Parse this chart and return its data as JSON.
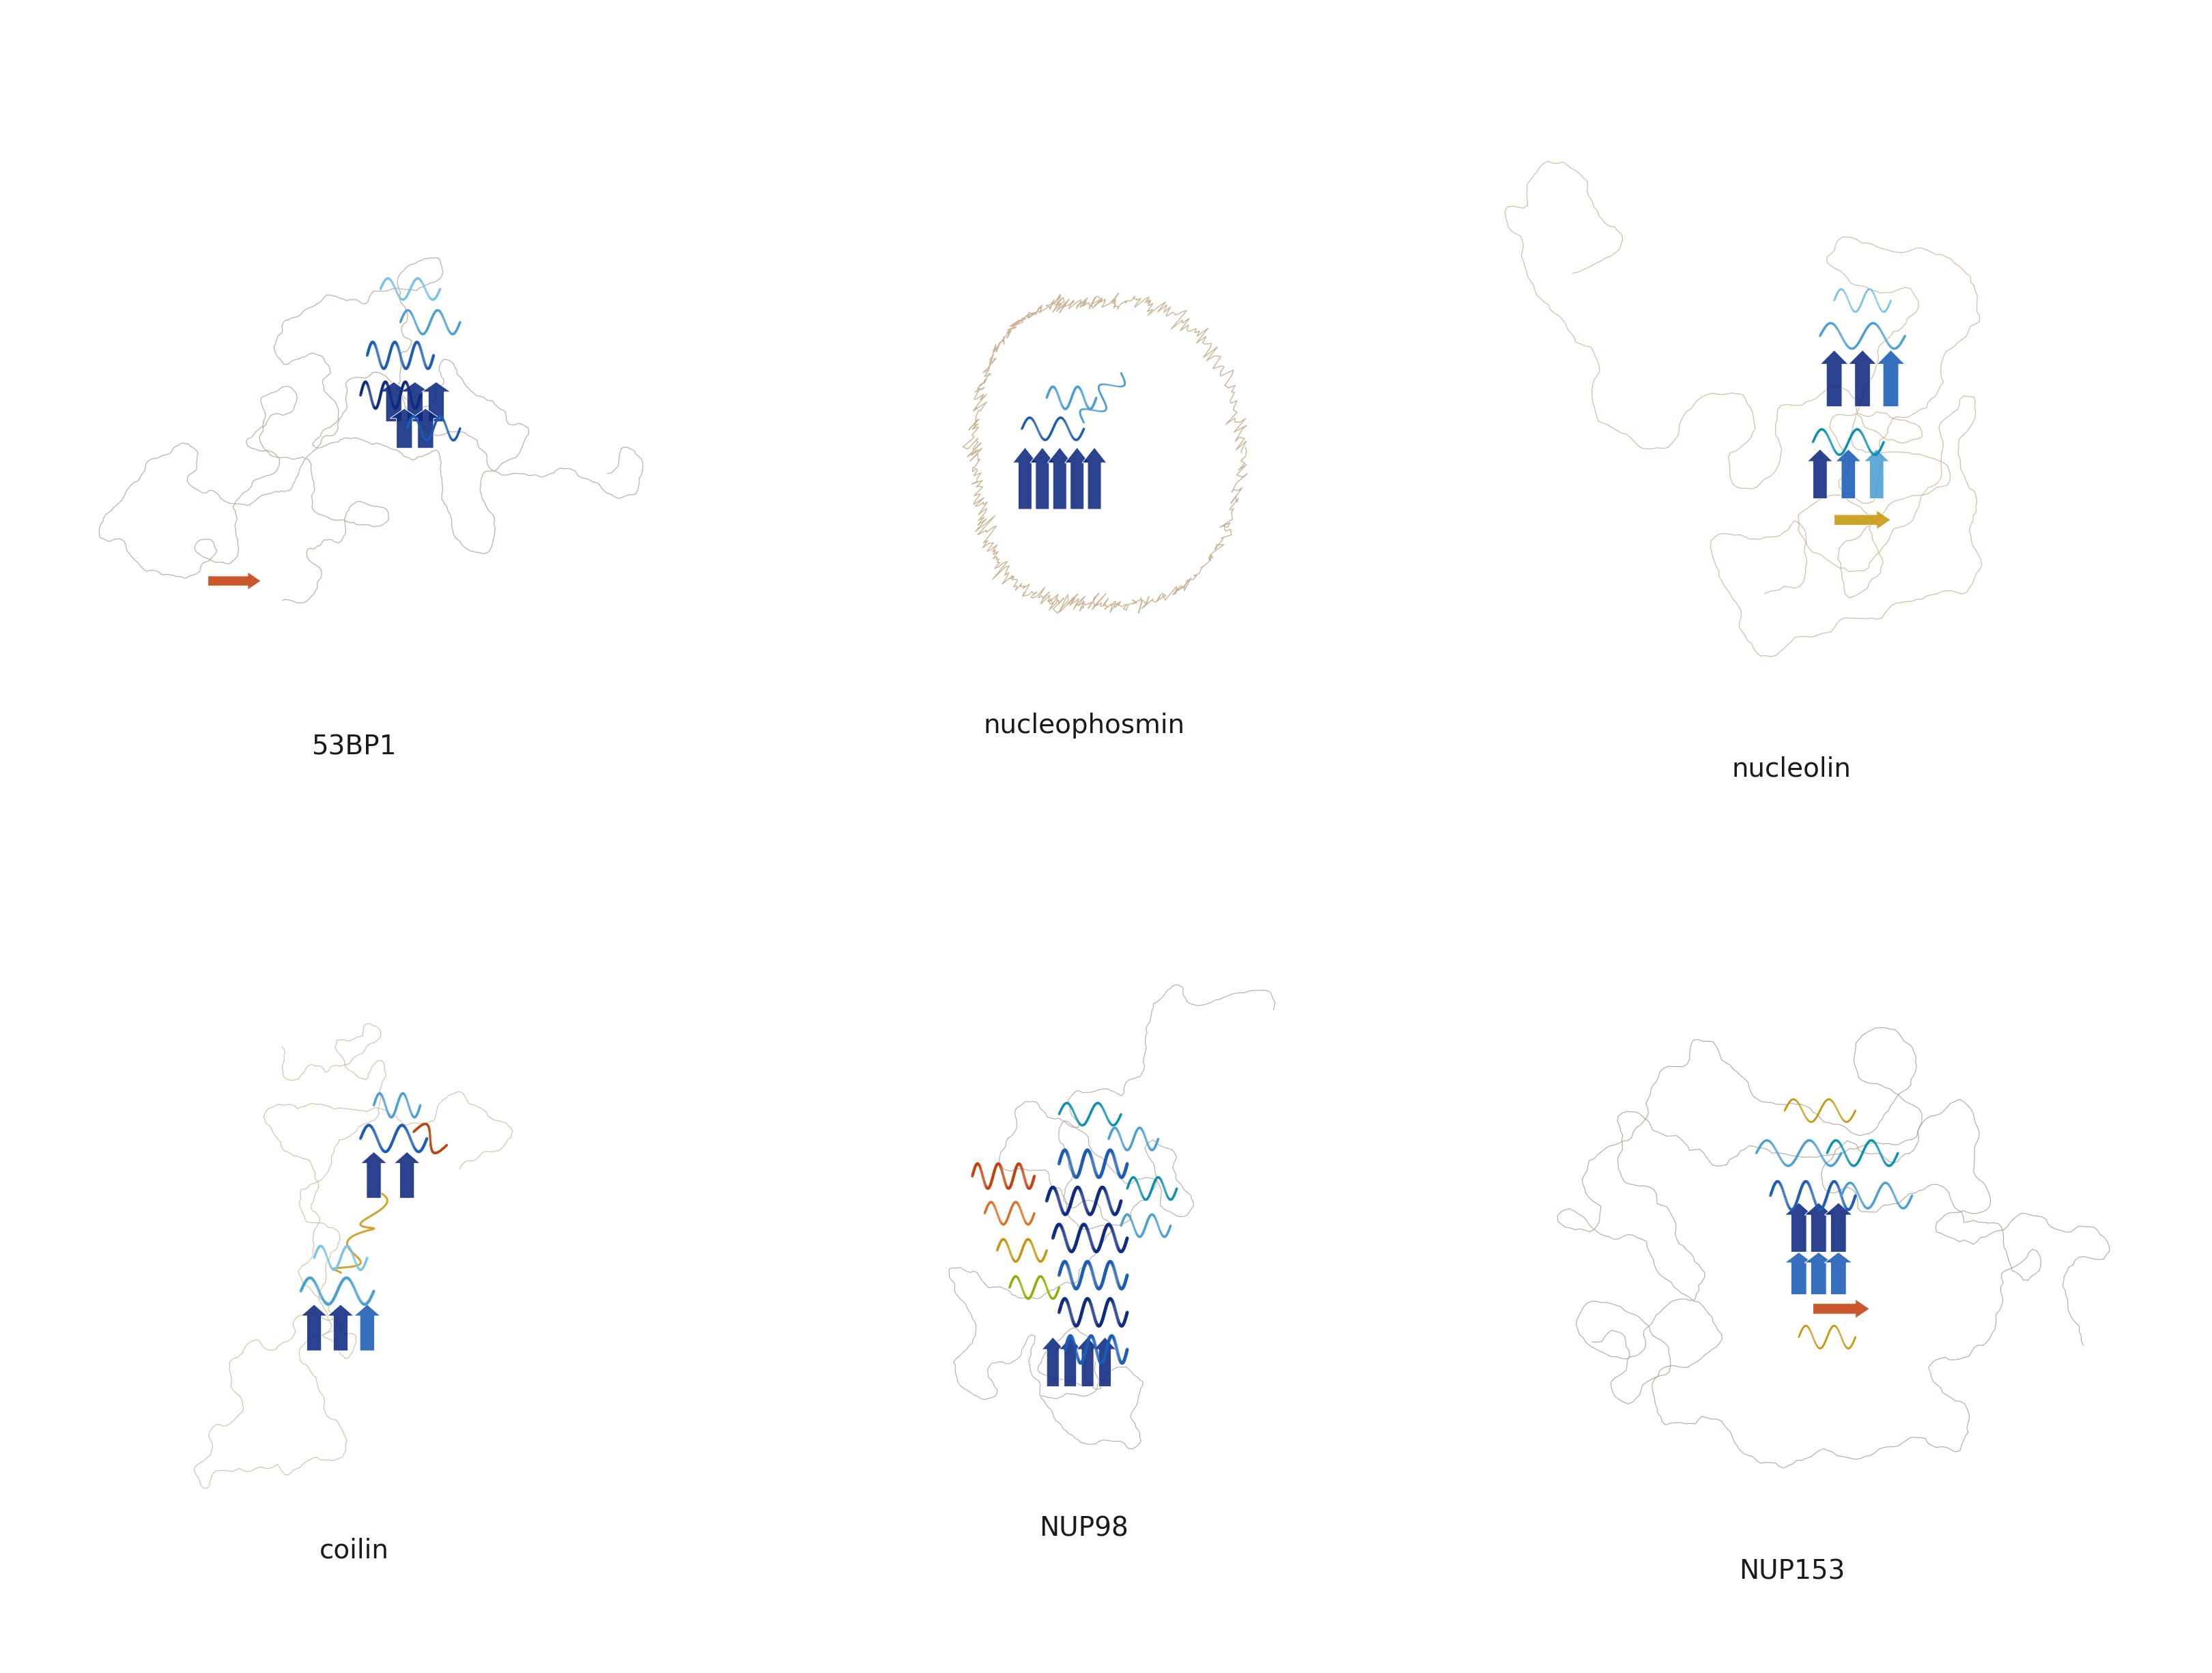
{
  "labels": [
    "53BP1",
    "nucleophosmin",
    "nucleolin",
    "coilin",
    "NUP98",
    "NUP153"
  ],
  "label_fontsize": 28,
  "label_color": "#1a1a1a",
  "background_color": "#ffffff",
  "fig_width": 32.4,
  "fig_height": 24.51,
  "idr_color_53bp1": "#8B7355",
  "idr_color_nucph": "#b8956a",
  "idr_color_nucln": "#b8956a",
  "idr_color_coilin": "#b8956a",
  "idr_color_nup98": "#5c4a2a",
  "idr_color_nup153": "#5c4a2a",
  "blue_dark": "#0d2980",
  "blue_mid": "#1a5bb5",
  "blue_light": "#4a9fd4",
  "blue_pale": "#7ac4e8",
  "cyan": "#00b4d8",
  "teal": "#0891b2",
  "orange_warm": "#c2410c",
  "orange_mid": "#e07020",
  "yellow": "#c8960c",
  "yellow_green": "#8db000",
  "green_teal": "#2d9e6b"
}
